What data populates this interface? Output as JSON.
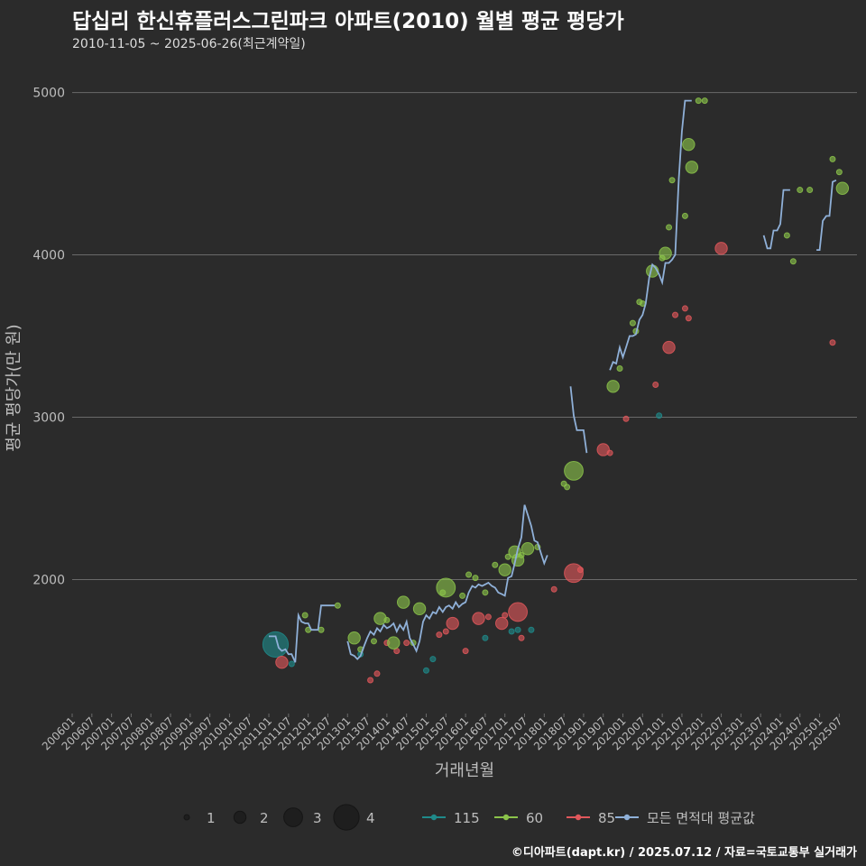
{
  "header": {
    "title": "답십리 한신휴플러스그린파크 아파트(2010) 월별 평균 평당가",
    "subtitle": "2010-11-05 ~ 2025-06-26(최근계약일)"
  },
  "footer": {
    "credit": "©디아파트(dapt.kr) / 2025.07.12 / 자료=국토교통부 실거래가"
  },
  "colors": {
    "bg": "#2b2b2b",
    "grid": "#6a6a6a",
    "s115": "#1f8a8a",
    "s60": "#8bc34a",
    "s85": "#e0575b",
    "avg": "#8fb0d8",
    "text": "#bdbdbd"
  },
  "chart_data": {
    "type": "line+scatter",
    "title": "답십리 한신휴플러스그린파크 아파트(2010) 월별 평균 평당가",
    "xlabel": "거래년월",
    "ylabel": "평균 평당가(만 원)",
    "ylim": [
      1180,
      5170
    ],
    "yticks": [
      2000,
      3000,
      4000,
      5000
    ],
    "ytick_labels": [
      "2000",
      "3000",
      "4000",
      "5000"
    ],
    "xlim": [
      2006.0,
      2025.95
    ],
    "xticks": [
      "200601",
      "200607",
      "200701",
      "200707",
      "200801",
      "200807",
      "200901",
      "200907",
      "201001",
      "201007",
      "201101",
      "201107",
      "201201",
      "201207",
      "201301",
      "201307",
      "201401",
      "201407",
      "201501",
      "201507",
      "201601",
      "201607",
      "201701",
      "201707",
      "201801",
      "201807",
      "201901",
      "201907",
      "202001",
      "202007",
      "202101",
      "202107",
      "202201",
      "202207",
      "202301",
      "202307",
      "202401",
      "202407",
      "202501",
      "202507"
    ],
    "size_legend": {
      "values": [
        1,
        2,
        3,
        4
      ],
      "labels": [
        "1",
        "2",
        "3",
        "4"
      ]
    },
    "series_legend": [
      {
        "key": "s115",
        "label": "115"
      },
      {
        "key": "s60",
        "label": "60"
      },
      {
        "key": "s85",
        "label": "85"
      },
      {
        "key": "avg",
        "label": "모든 면적대 평균값"
      }
    ],
    "scatter": {
      "s115": [
        {
          "t": 2011.17,
          "v": 1600,
          "n": 4
        },
        {
          "t": 2011.58,
          "v": 1480,
          "n": 1
        },
        {
          "t": 2013.33,
          "v": 1540,
          "n": 1
        },
        {
          "t": 2015.0,
          "v": 1440,
          "n": 1
        },
        {
          "t": 2015.17,
          "v": 1510,
          "n": 1
        },
        {
          "t": 2016.5,
          "v": 1640,
          "n": 1
        },
        {
          "t": 2017.17,
          "v": 1680,
          "n": 1
        },
        {
          "t": 2017.33,
          "v": 1690,
          "n": 1
        },
        {
          "t": 2017.67,
          "v": 1690,
          "n": 1
        },
        {
          "t": 2020.92,
          "v": 3010,
          "n": 1
        }
      ],
      "s60": [
        {
          "t": 2011.92,
          "v": 1780,
          "n": 1
        },
        {
          "t": 2012.0,
          "v": 1690,
          "n": 1
        },
        {
          "t": 2012.33,
          "v": 1690,
          "n": 1
        },
        {
          "t": 2012.75,
          "v": 1840,
          "n": 1
        },
        {
          "t": 2013.17,
          "v": 1640,
          "n": 2
        },
        {
          "t": 2013.33,
          "v": 1570,
          "n": 1
        },
        {
          "t": 2013.67,
          "v": 1620,
          "n": 1
        },
        {
          "t": 2013.83,
          "v": 1760,
          "n": 2
        },
        {
          "t": 2014.0,
          "v": 1750,
          "n": 1
        },
        {
          "t": 2014.17,
          "v": 1610,
          "n": 2
        },
        {
          "t": 2014.42,
          "v": 1860,
          "n": 2
        },
        {
          "t": 2014.83,
          "v": 1820,
          "n": 2
        },
        {
          "t": 2014.67,
          "v": 1610,
          "n": 1
        },
        {
          "t": 2015.5,
          "v": 1950,
          "n": 3
        },
        {
          "t": 2015.42,
          "v": 1920,
          "n": 1
        },
        {
          "t": 2015.92,
          "v": 1900,
          "n": 1
        },
        {
          "t": 2016.08,
          "v": 2030,
          "n": 1
        },
        {
          "t": 2016.25,
          "v": 2010,
          "n": 1
        },
        {
          "t": 2016.5,
          "v": 1920,
          "n": 1
        },
        {
          "t": 2016.75,
          "v": 2090,
          "n": 1
        },
        {
          "t": 2017.0,
          "v": 2060,
          "n": 2
        },
        {
          "t": 2017.08,
          "v": 2140,
          "n": 1
        },
        {
          "t": 2017.25,
          "v": 2170,
          "n": 2
        },
        {
          "t": 2017.33,
          "v": 2120,
          "n": 2
        },
        {
          "t": 2017.42,
          "v": 2150,
          "n": 1
        },
        {
          "t": 2017.58,
          "v": 2190,
          "n": 2
        },
        {
          "t": 2017.83,
          "v": 2200,
          "n": 1
        },
        {
          "t": 2018.5,
          "v": 2590,
          "n": 1
        },
        {
          "t": 2018.58,
          "v": 2570,
          "n": 1
        },
        {
          "t": 2018.75,
          "v": 2670,
          "n": 3
        },
        {
          "t": 2019.75,
          "v": 3190,
          "n": 2
        },
        {
          "t": 2019.92,
          "v": 3300,
          "n": 1
        },
        {
          "t": 2020.25,
          "v": 3580,
          "n": 1
        },
        {
          "t": 2020.33,
          "v": 3530,
          "n": 1
        },
        {
          "t": 2020.42,
          "v": 3710,
          "n": 1
        },
        {
          "t": 2020.5,
          "v": 3700,
          "n": 1
        },
        {
          "t": 2020.75,
          "v": 3900,
          "n": 2
        },
        {
          "t": 2021.0,
          "v": 3980,
          "n": 1
        },
        {
          "t": 2021.08,
          "v": 4010,
          "n": 2
        },
        {
          "t": 2021.17,
          "v": 4170,
          "n": 1
        },
        {
          "t": 2021.25,
          "v": 4460,
          "n": 1
        },
        {
          "t": 2021.58,
          "v": 4240,
          "n": 1
        },
        {
          "t": 2021.67,
          "v": 4680,
          "n": 2
        },
        {
          "t": 2021.75,
          "v": 4540,
          "n": 2
        },
        {
          "t": 2021.92,
          "v": 4950,
          "n": 1
        },
        {
          "t": 2022.08,
          "v": 4950,
          "n": 1
        },
        {
          "t": 2024.17,
          "v": 4120,
          "n": 1
        },
        {
          "t": 2024.33,
          "v": 3960,
          "n": 1
        },
        {
          "t": 2024.5,
          "v": 4400,
          "n": 1
        },
        {
          "t": 2024.75,
          "v": 4400,
          "n": 1
        },
        {
          "t": 2025.33,
          "v": 4590,
          "n": 1
        },
        {
          "t": 2025.5,
          "v": 4510,
          "n": 1
        },
        {
          "t": 2025.58,
          "v": 4410,
          "n": 2
        }
      ],
      "s85": [
        {
          "t": 2011.33,
          "v": 1490,
          "n": 2
        },
        {
          "t": 2013.58,
          "v": 1380,
          "n": 1
        },
        {
          "t": 2013.75,
          "v": 1420,
          "n": 1
        },
        {
          "t": 2014.0,
          "v": 1610,
          "n": 1
        },
        {
          "t": 2014.25,
          "v": 1560,
          "n": 1
        },
        {
          "t": 2014.5,
          "v": 1610,
          "n": 1
        },
        {
          "t": 2015.33,
          "v": 1660,
          "n": 1
        },
        {
          "t": 2015.5,
          "v": 1680,
          "n": 1
        },
        {
          "t": 2015.67,
          "v": 1730,
          "n": 2
        },
        {
          "t": 2016.0,
          "v": 1560,
          "n": 1
        },
        {
          "t": 2016.33,
          "v": 1760,
          "n": 2
        },
        {
          "t": 2016.58,
          "v": 1770,
          "n": 1
        },
        {
          "t": 2016.92,
          "v": 1730,
          "n": 2
        },
        {
          "t": 2017.0,
          "v": 1780,
          "n": 1
        },
        {
          "t": 2017.33,
          "v": 1800,
          "n": 3
        },
        {
          "t": 2017.42,
          "v": 1640,
          "n": 1
        },
        {
          "t": 2018.25,
          "v": 1940,
          "n": 1
        },
        {
          "t": 2018.75,
          "v": 2040,
          "n": 3
        },
        {
          "t": 2018.92,
          "v": 2060,
          "n": 1
        },
        {
          "t": 2019.5,
          "v": 2800,
          "n": 2
        },
        {
          "t": 2019.67,
          "v": 2780,
          "n": 1
        },
        {
          "t": 2020.08,
          "v": 2990,
          "n": 1
        },
        {
          "t": 2020.83,
          "v": 3200,
          "n": 1
        },
        {
          "t": 2021.17,
          "v": 3430,
          "n": 2
        },
        {
          "t": 2021.33,
          "v": 3630,
          "n": 1
        },
        {
          "t": 2021.58,
          "v": 3670,
          "n": 1
        },
        {
          "t": 2021.67,
          "v": 3610,
          "n": 1
        },
        {
          "t": 2022.5,
          "v": 4040,
          "n": 2
        },
        {
          "t": 2025.33,
          "v": 3460,
          "n": 1
        }
      ]
    },
    "avg_segments": [
      [
        [
          2011.0,
          1650
        ],
        [
          2011.17,
          1650
        ],
        [
          2011.25,
          1580
        ],
        [
          2011.33,
          1560
        ],
        [
          2011.42,
          1570
        ],
        [
          2011.5,
          1540
        ],
        [
          2011.58,
          1540
        ],
        [
          2011.67,
          1490
        ],
        [
          2011.75,
          1780
        ],
        [
          2011.83,
          1740
        ],
        [
          2011.92,
          1730
        ],
        [
          2012.0,
          1730
        ],
        [
          2012.08,
          1690
        ],
        [
          2012.17,
          1690
        ],
        [
          2012.25,
          1690
        ],
        [
          2012.33,
          1840
        ],
        [
          2012.5,
          1840
        ],
        [
          2012.67,
          1840
        ]
      ],
      [
        [
          2013.0,
          1620
        ],
        [
          2013.08,
          1540
        ],
        [
          2013.17,
          1530
        ],
        [
          2013.25,
          1510
        ],
        [
          2013.33,
          1530
        ],
        [
          2013.42,
          1590
        ],
        [
          2013.5,
          1640
        ],
        [
          2013.58,
          1680
        ],
        [
          2013.67,
          1660
        ],
        [
          2013.75,
          1700
        ],
        [
          2013.83,
          1680
        ],
        [
          2013.92,
          1720
        ],
        [
          2014.0,
          1700
        ],
        [
          2014.08,
          1710
        ],
        [
          2014.17,
          1730
        ],
        [
          2014.25,
          1680
        ],
        [
          2014.33,
          1720
        ],
        [
          2014.42,
          1690
        ],
        [
          2014.5,
          1740
        ],
        [
          2014.58,
          1640
        ],
        [
          2014.67,
          1600
        ],
        [
          2014.75,
          1560
        ],
        [
          2014.83,
          1620
        ],
        [
          2014.92,
          1740
        ],
        [
          2015.0,
          1780
        ],
        [
          2015.08,
          1760
        ],
        [
          2015.17,
          1800
        ],
        [
          2015.25,
          1790
        ],
        [
          2015.33,
          1830
        ],
        [
          2015.42,
          1800
        ],
        [
          2015.5,
          1830
        ],
        [
          2015.58,
          1840
        ],
        [
          2015.67,
          1820
        ],
        [
          2015.75,
          1860
        ],
        [
          2015.83,
          1830
        ],
        [
          2015.92,
          1850
        ],
        [
          2016.0,
          1860
        ],
        [
          2016.08,
          1920
        ],
        [
          2016.17,
          1960
        ],
        [
          2016.25,
          1950
        ],
        [
          2016.33,
          1970
        ],
        [
          2016.42,
          1960
        ],
        [
          2016.5,
          1970
        ],
        [
          2016.58,
          1980
        ],
        [
          2016.67,
          1960
        ],
        [
          2016.75,
          1950
        ],
        [
          2016.83,
          1920
        ],
        [
          2016.92,
          1910
        ],
        [
          2017.0,
          1900
        ],
        [
          2017.08,
          2010
        ],
        [
          2017.17,
          2020
        ],
        [
          2017.25,
          2100
        ],
        [
          2017.33,
          2190
        ],
        [
          2017.42,
          2260
        ],
        [
          2017.5,
          2460
        ],
        [
          2017.58,
          2400
        ],
        [
          2017.67,
          2330
        ],
        [
          2017.75,
          2240
        ],
        [
          2017.83,
          2230
        ],
        [
          2017.92,
          2160
        ],
        [
          2018.0,
          2100
        ],
        [
          2018.08,
          2150
        ]
      ],
      [
        [
          2018.67,
          3190
        ],
        [
          2018.75,
          3010
        ],
        [
          2018.83,
          2920
        ],
        [
          2018.92,
          2920
        ],
        [
          2019.0,
          2920
        ],
        [
          2019.08,
          2780
        ]
      ],
      [
        [
          2019.67,
          3290
        ],
        [
          2019.75,
          3340
        ],
        [
          2019.83,
          3330
        ],
        [
          2019.92,
          3430
        ],
        [
          2020.0,
          3370
        ],
        [
          2020.08,
          3430
        ],
        [
          2020.17,
          3500
        ],
        [
          2020.25,
          3500
        ],
        [
          2020.33,
          3510
        ],
        [
          2020.42,
          3600
        ],
        [
          2020.5,
          3630
        ],
        [
          2020.58,
          3700
        ],
        [
          2020.67,
          3860
        ],
        [
          2020.75,
          3940
        ],
        [
          2020.83,
          3920
        ],
        [
          2020.92,
          3880
        ],
        [
          2021.0,
          3830
        ],
        [
          2021.08,
          3950
        ],
        [
          2021.17,
          3950
        ],
        [
          2021.25,
          3970
        ],
        [
          2021.33,
          4000
        ],
        [
          2021.42,
          4470
        ],
        [
          2021.5,
          4760
        ],
        [
          2021.58,
          4950
        ],
        [
          2021.67,
          4950
        ],
        [
          2021.75,
          4950
        ]
      ],
      [
        [
          2023.58,
          4120
        ],
        [
          2023.67,
          4040
        ],
        [
          2023.75,
          4040
        ],
        [
          2023.83,
          4150
        ],
        [
          2023.92,
          4150
        ],
        [
          2024.0,
          4190
        ],
        [
          2024.08,
          4400
        ],
        [
          2024.17,
          4400
        ],
        [
          2024.25,
          4400
        ]
      ],
      [
        [
          2024.92,
          4030
        ],
        [
          2025.0,
          4030
        ],
        [
          2025.08,
          4210
        ],
        [
          2025.17,
          4240
        ],
        [
          2025.25,
          4240
        ],
        [
          2025.33,
          4450
        ],
        [
          2025.42,
          4460
        ]
      ]
    ]
  }
}
